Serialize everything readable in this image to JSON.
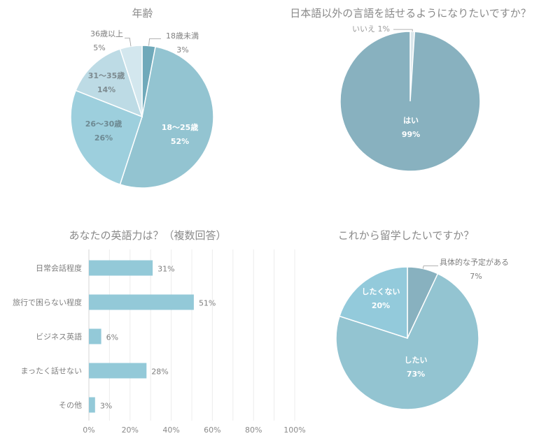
{
  "chart_data": [
    {
      "type": "pie",
      "title": "年齢",
      "categories": [
        "18歳未満",
        "18〜25歳",
        "26〜30歳",
        "31〜35歳",
        "36歳以上"
      ],
      "values": [
        3,
        52,
        26,
        14,
        5
      ],
      "labels": [
        "3%",
        "52%",
        "26%",
        "14%",
        "5%"
      ],
      "colors": [
        "#6fa9ba",
        "#93c4d1",
        "#9dcfdd",
        "#bddbe5",
        "#d3e7ee"
      ]
    },
    {
      "type": "pie",
      "title": "日本語以外の言語を話せるようになりたいですか？",
      "categories": [
        "いいえ",
        "はい"
      ],
      "values": [
        1,
        99
      ],
      "labels": [
        "1%",
        "99%"
      ],
      "colors": [
        "#dbe7ec",
        "#88b1bf"
      ]
    },
    {
      "type": "bar",
      "orientation": "horizontal",
      "title": "あなたの英語力は？（複数回答）",
      "categories": [
        "日常会話程度",
        "旅行で困らない程度",
        "ビジネス英語",
        "まったく話せない",
        "その他"
      ],
      "values": [
        31,
        51,
        6,
        28,
        3
      ],
      "labels": [
        "31%",
        "51%",
        "6%",
        "28%",
        "3%"
      ],
      "xlim": [
        0,
        100
      ],
      "xticks": [
        "0%",
        "20%",
        "40%",
        "60%",
        "80%",
        "100%"
      ],
      "grid": true,
      "color": "#93c9d8"
    },
    {
      "type": "pie",
      "title": "これから留学したいですか？",
      "categories": [
        "具体的な予定がある",
        "したい",
        "したくない"
      ],
      "values": [
        7,
        73,
        20
      ],
      "labels": [
        "7%",
        "73%",
        "20%"
      ],
      "colors": [
        "#88b1bf",
        "#93c4d1",
        "#93cadb"
      ]
    }
  ]
}
